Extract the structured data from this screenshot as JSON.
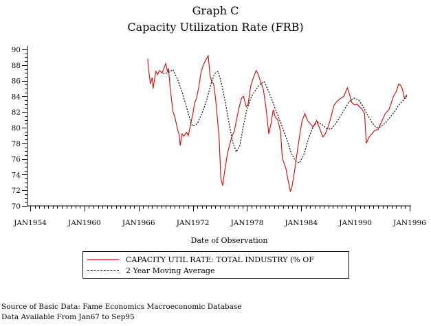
{
  "chart_data": {
    "type": "line",
    "title": "Graph C",
    "subtitle": "Capacity Utilization Rate (FRB)",
    "xlabel": "Date of Observation",
    "ylabel": "",
    "xlim": [
      1954,
      1996
    ],
    "ylim": [
      70,
      90
    ],
    "grid": false,
    "legend_position": "bottom",
    "x_ticks": [
      {
        "value": 1954,
        "label": "JAN1954"
      },
      {
        "value": 1960,
        "label": "JAN1960"
      },
      {
        "value": 1966,
        "label": "JAN1966"
      },
      {
        "value": 1972,
        "label": "JAN1972"
      },
      {
        "value": 1978,
        "label": "JAN1978"
      },
      {
        "value": 1984,
        "label": "JAN1984"
      },
      {
        "value": 1990,
        "label": "JAN1990"
      },
      {
        "value": 1996,
        "label": "JAN1996"
      }
    ],
    "y_ticks": [
      {
        "value": 90,
        "label": "90"
      },
      {
        "value": 88,
        "label": "88"
      },
      {
        "value": 86,
        "label": "86"
      },
      {
        "value": 84,
        "label": "84"
      },
      {
        "value": 82,
        "label": "82"
      },
      {
        "value": 80,
        "label": "80"
      },
      {
        "value": 78,
        "label": "78"
      },
      {
        "value": 76,
        "label": "76"
      },
      {
        "value": 74,
        "label": "74"
      },
      {
        "value": 72,
        "label": "72"
      },
      {
        "value": 70,
        "label": "70"
      }
    ],
    "series": [
      {
        "name": "CAPACITY UTIL RATE: TOTAL INDUSTRY (% OF",
        "color": "#e00000",
        "style": "solid",
        "points": [
          [
            1967.0,
            88.8
          ],
          [
            1967.1,
            87.4
          ],
          [
            1967.3,
            85.6
          ],
          [
            1967.5,
            86.4
          ],
          [
            1967.6,
            85.0
          ],
          [
            1967.9,
            87.2
          ],
          [
            1968.1,
            86.8
          ],
          [
            1968.3,
            87.3
          ],
          [
            1968.6,
            87.0
          ],
          [
            1968.8,
            87.6
          ],
          [
            1969.0,
            88.2
          ],
          [
            1969.2,
            87.1
          ],
          [
            1969.3,
            87.6
          ],
          [
            1969.5,
            84.9
          ],
          [
            1969.8,
            82.0
          ],
          [
            1970.0,
            81.4
          ],
          [
            1970.3,
            79.8
          ],
          [
            1970.5,
            79.0
          ],
          [
            1970.6,
            77.7
          ],
          [
            1970.8,
            79.2
          ],
          [
            1971.0,
            78.9
          ],
          [
            1971.3,
            79.4
          ],
          [
            1971.5,
            79.0
          ],
          [
            1971.8,
            80.7
          ],
          [
            1972.0,
            81.8
          ],
          [
            1972.2,
            83.2
          ],
          [
            1972.4,
            83.7
          ],
          [
            1972.7,
            85.5
          ],
          [
            1972.9,
            87.1
          ],
          [
            1973.2,
            88.1
          ],
          [
            1973.4,
            88.6
          ],
          [
            1973.7,
            89.2
          ],
          [
            1973.9,
            86.7
          ],
          [
            1974.1,
            85.8
          ],
          [
            1974.3,
            85.6
          ],
          [
            1974.5,
            83.9
          ],
          [
            1974.9,
            78.8
          ],
          [
            1975.1,
            73.5
          ],
          [
            1975.3,
            72.6
          ],
          [
            1975.5,
            74.3
          ],
          [
            1975.8,
            76.5
          ],
          [
            1976.0,
            77.5
          ],
          [
            1976.3,
            78.8
          ],
          [
            1976.6,
            79.6
          ],
          [
            1976.9,
            81.4
          ],
          [
            1977.1,
            82.5
          ],
          [
            1977.4,
            83.8
          ],
          [
            1977.6,
            84.0
          ],
          [
            1977.9,
            82.7
          ],
          [
            1978.1,
            82.9
          ],
          [
            1978.4,
            85.3
          ],
          [
            1978.7,
            86.4
          ],
          [
            1979.0,
            87.3
          ],
          [
            1979.2,
            86.9
          ],
          [
            1979.5,
            85.9
          ],
          [
            1979.8,
            84.9
          ],
          [
            1980.1,
            82.5
          ],
          [
            1980.4,
            79.2
          ],
          [
            1980.6,
            80.2
          ],
          [
            1980.9,
            82.3
          ],
          [
            1981.1,
            81.4
          ],
          [
            1981.4,
            81.0
          ],
          [
            1981.7,
            79.5
          ],
          [
            1981.9,
            76.1
          ],
          [
            1982.3,
            74.8
          ],
          [
            1982.5,
            73.5
          ],
          [
            1982.8,
            71.8
          ],
          [
            1983.0,
            72.6
          ],
          [
            1983.3,
            74.8
          ],
          [
            1983.6,
            77.3
          ],
          [
            1983.9,
            79.6
          ],
          [
            1984.1,
            80.9
          ],
          [
            1984.4,
            81.8
          ],
          [
            1984.7,
            80.9
          ],
          [
            1985.0,
            80.5
          ],
          [
            1985.3,
            80.1
          ],
          [
            1985.7,
            80.9
          ],
          [
            1986.0,
            80.0
          ],
          [
            1986.4,
            78.8
          ],
          [
            1986.7,
            79.3
          ],
          [
            1987.0,
            80.2
          ],
          [
            1987.3,
            81.4
          ],
          [
            1987.6,
            82.8
          ],
          [
            1987.9,
            83.3
          ],
          [
            1988.3,
            83.7
          ],
          [
            1988.7,
            84.0
          ],
          [
            1989.1,
            85.1
          ],
          [
            1989.3,
            84.4
          ],
          [
            1989.6,
            83.2
          ],
          [
            1989.9,
            82.9
          ],
          [
            1990.2,
            83.0
          ],
          [
            1990.4,
            82.7
          ],
          [
            1990.7,
            82.4
          ],
          [
            1991.0,
            81.8
          ],
          [
            1991.2,
            78.0
          ],
          [
            1991.5,
            78.8
          ],
          [
            1991.8,
            79.2
          ],
          [
            1992.1,
            79.6
          ],
          [
            1992.5,
            79.8
          ],
          [
            1992.9,
            80.8
          ],
          [
            1993.3,
            81.8
          ],
          [
            1993.7,
            82.3
          ],
          [
            1994.0,
            83.3
          ],
          [
            1994.2,
            84.0
          ],
          [
            1994.5,
            84.6
          ],
          [
            1994.8,
            85.6
          ],
          [
            1995.0,
            85.4
          ],
          [
            1995.2,
            84.9
          ],
          [
            1995.4,
            83.8
          ],
          [
            1995.7,
            84.2
          ]
        ]
      },
      {
        "name": "2 Year Moving Average",
        "color": "#000000",
        "style": "dashed",
        "points": [
          [
            1968.7,
            86.9
          ],
          [
            1969.2,
            87.0
          ],
          [
            1969.8,
            87.4
          ],
          [
            1970.3,
            86.2
          ],
          [
            1970.8,
            84.6
          ],
          [
            1971.3,
            82.6
          ],
          [
            1971.8,
            80.6
          ],
          [
            1972.0,
            80.2
          ],
          [
            1972.5,
            80.5
          ],
          [
            1973.0,
            81.8
          ],
          [
            1973.5,
            83.4
          ],
          [
            1974.0,
            85.6
          ],
          [
            1974.4,
            86.9
          ],
          [
            1974.8,
            87.2
          ],
          [
            1975.2,
            85.5
          ],
          [
            1975.6,
            83.2
          ],
          [
            1976.0,
            80.6
          ],
          [
            1976.4,
            78.2
          ],
          [
            1976.8,
            76.9
          ],
          [
            1977.2,
            77.7
          ],
          [
            1977.6,
            80.3
          ],
          [
            1978.0,
            82.4
          ],
          [
            1978.5,
            84.0
          ],
          [
            1979.0,
            84.9
          ],
          [
            1979.5,
            85.6
          ],
          [
            1979.9,
            85.9
          ],
          [
            1980.4,
            84.6
          ],
          [
            1980.9,
            83.1
          ],
          [
            1981.4,
            81.6
          ],
          [
            1981.9,
            80.1
          ],
          [
            1982.4,
            78.5
          ],
          [
            1982.9,
            76.7
          ],
          [
            1983.4,
            75.7
          ],
          [
            1983.8,
            75.5
          ],
          [
            1984.3,
            76.6
          ],
          [
            1984.8,
            78.6
          ],
          [
            1985.3,
            80.1
          ],
          [
            1985.8,
            80.7
          ],
          [
            1986.3,
            80.4
          ],
          [
            1986.8,
            79.9
          ],
          [
            1987.3,
            79.8
          ],
          [
            1987.8,
            80.5
          ],
          [
            1988.3,
            81.4
          ],
          [
            1988.8,
            82.4
          ],
          [
            1989.3,
            83.3
          ],
          [
            1989.8,
            83.8
          ],
          [
            1990.3,
            83.6
          ],
          [
            1990.8,
            82.8
          ],
          [
            1991.3,
            81.7
          ],
          [
            1991.8,
            80.7
          ],
          [
            1992.3,
            80.0
          ],
          [
            1992.8,
            80.1
          ],
          [
            1993.3,
            80.6
          ],
          [
            1993.8,
            81.3
          ],
          [
            1994.3,
            82.0
          ],
          [
            1994.8,
            82.9
          ],
          [
            1995.3,
            83.5
          ],
          [
            1995.7,
            84.0
          ]
        ]
      }
    ],
    "legend": [
      {
        "label": "CAPACITY UTIL RATE: TOTAL INDUSTRY (% OF",
        "color": "#e00000",
        "style": "solid"
      },
      {
        "label": "2 Year Moving Average",
        "color": "#000000",
        "style": "dashed"
      }
    ],
    "annotations": [
      "Source of Basic Data: Fame Economics Macroeconomic Database",
      "Data Available From Jan67 to Sep95"
    ]
  }
}
